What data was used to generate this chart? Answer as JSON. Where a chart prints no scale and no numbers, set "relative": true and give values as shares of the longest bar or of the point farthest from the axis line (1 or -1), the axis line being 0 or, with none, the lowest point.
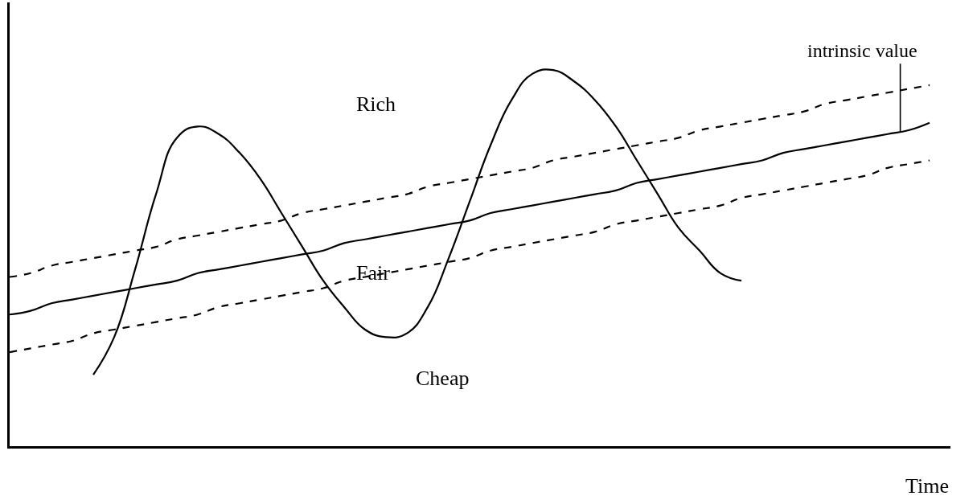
{
  "chart_data": {
    "type": "line",
    "relative": true,
    "xlabel": "Time",
    "marker": "none",
    "categories": [
      null,
      null,
      null,
      null,
      null,
      null,
      null,
      null,
      null,
      null,
      null,
      null,
      null,
      null,
      null,
      null,
      null,
      null,
      null,
      null,
      null,
      null,
      null,
      null,
      null,
      null,
      null,
      null,
      null,
      null,
      null,
      null,
      null,
      null,
      null,
      null,
      null,
      null,
      null,
      null,
      null,
      null,
      null,
      null,
      null
    ],
    "series": [
      {
        "color": "#000000",
        "line_style": "solid",
        "values": [
          null,
          null,
          null,
          null,
          0.19,
          0.29,
          0.47,
          0.67,
          0.82,
          0.85,
          0.83,
          0.78,
          0.71,
          0.62,
          0.53,
          0.44,
          0.37,
          0.31,
          0.29,
          0.3,
          0.37,
          0.5,
          0.65,
          0.8,
          0.92,
          0.99,
          1,
          0.97,
          0.92,
          0.85,
          0.76,
          0.67,
          0.58,
          0.52,
          0.46,
          0.44,
          null,
          null,
          null,
          null,
          null,
          null,
          null,
          null,
          null
        ]
      },
      {
        "color": "#000000",
        "line_style": "solid",
        "values": [
          0.35,
          0.36,
          0.38,
          0.39,
          0.4,
          0.41,
          0.42,
          0.43,
          0.44,
          0.46,
          0.47,
          0.48,
          0.49,
          0.5,
          0.51,
          0.52,
          0.54,
          0.55,
          0.56,
          0.57,
          0.58,
          0.59,
          0.6,
          0.62,
          0.63,
          0.64,
          0.65,
          0.66,
          0.67,
          0.68,
          0.7,
          0.71,
          0.72,
          0.73,
          0.74,
          0.75,
          0.76,
          0.78,
          0.79,
          0.8,
          0.81,
          0.82,
          0.83,
          0.84,
          0.86
        ]
      },
      {
        "color": "#000000",
        "line_style": "dashed",
        "values": [
          0.45,
          0.46,
          0.48,
          0.49,
          0.5,
          0.51,
          0.52,
          0.53,
          0.55,
          0.56,
          0.57,
          0.58,
          0.59,
          0.6,
          0.62,
          0.63,
          0.64,
          0.65,
          0.66,
          0.67,
          0.69,
          0.7,
          0.71,
          0.72,
          0.73,
          0.74,
          0.76,
          0.77,
          0.78,
          0.79,
          0.8,
          0.81,
          0.82,
          0.84,
          0.85,
          0.86,
          0.87,
          0.88,
          0.89,
          0.91,
          0.92,
          0.93,
          0.94,
          0.95,
          0.96
        ]
      },
      {
        "color": "#000000",
        "line_style": "dashed",
        "values": [
          0.25,
          0.26,
          0.27,
          0.28,
          0.3,
          0.31,
          0.32,
          0.33,
          0.34,
          0.35,
          0.37,
          0.38,
          0.39,
          0.4,
          0.41,
          0.42,
          0.44,
          0.45,
          0.46,
          0.47,
          0.48,
          0.49,
          0.5,
          0.52,
          0.53,
          0.54,
          0.55,
          0.56,
          0.57,
          0.59,
          0.6,
          0.61,
          0.62,
          0.63,
          0.64,
          0.66,
          0.67,
          0.68,
          0.69,
          0.7,
          0.71,
          0.72,
          0.74,
          0.75,
          0.76
        ]
      }
    ],
    "annotations": [
      "Rich",
      "Fair",
      "Cheap",
      "intrinsic value"
    ]
  }
}
